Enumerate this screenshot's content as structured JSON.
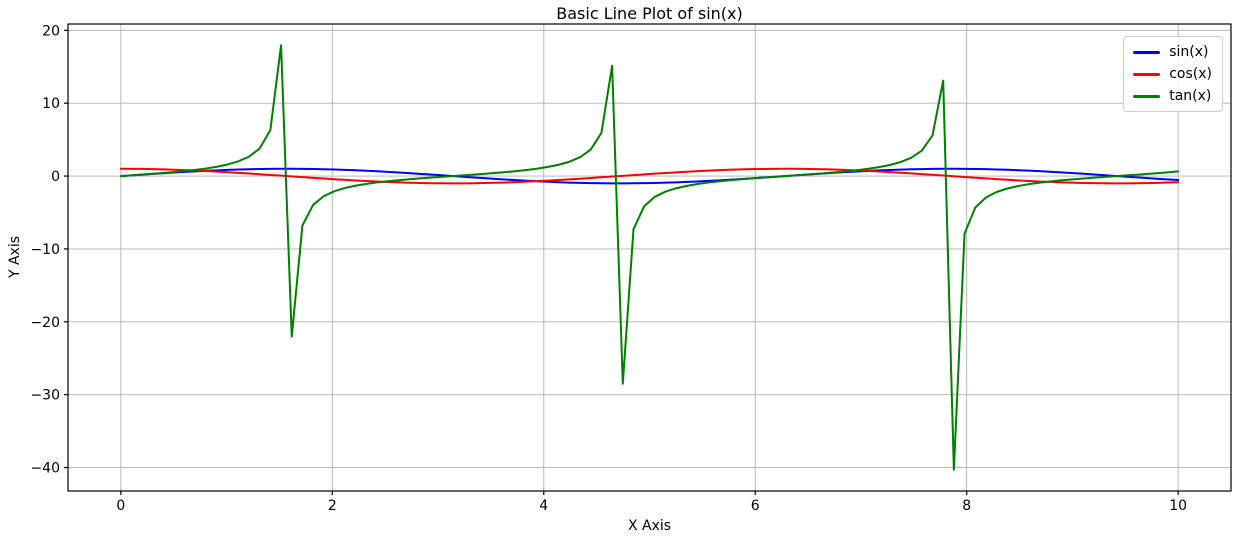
{
  "chart_data": {
    "type": "line",
    "title": "Basic Line Plot of sin(x)",
    "xlabel": "X Axis",
    "ylabel": "Y Axis",
    "x": {
      "min": 0,
      "max": 10,
      "n_points": 100,
      "description": "x = 100 evenly spaced samples from 0 to 10 (step 0.10101)"
    },
    "series": [
      {
        "name": "sin(x)",
        "fn": "sin",
        "color": "#0000ff",
        "linewidth": 2
      },
      {
        "name": "cos(x)",
        "fn": "cos",
        "color": "#ff0000",
        "linewidth": 2
      },
      {
        "name": "tan(x)",
        "fn": "tan",
        "color": "#008000",
        "linewidth": 2
      }
    ],
    "xlim": [
      -0.5,
      10.5
    ],
    "ylim": [
      -43.22,
      20.87
    ],
    "xticks": [
      0,
      2,
      4,
      6,
      8,
      10
    ],
    "yticks": [
      20,
      10,
      0,
      -10,
      -20,
      -30,
      -40
    ],
    "grid": true,
    "grid_color": "#b0b0b0",
    "axes_edge_color": "#000000",
    "background_color": "#ffffff",
    "legend": {
      "position": "upper right",
      "entries": [
        "sin(x)",
        "cos(x)",
        "tan(x)"
      ]
    },
    "notable_sampled_extremes": {
      "tan_spikes_x_y": [
        [
          1.5152,
          17.95
        ],
        [
          1.6162,
          -21.92
        ],
        [
          4.6465,
          15.12
        ],
        [
          4.7475,
          -28.51
        ],
        [
          7.7778,
          13.07
        ],
        [
          7.8788,
          -40.3
        ]
      ]
    }
  }
}
